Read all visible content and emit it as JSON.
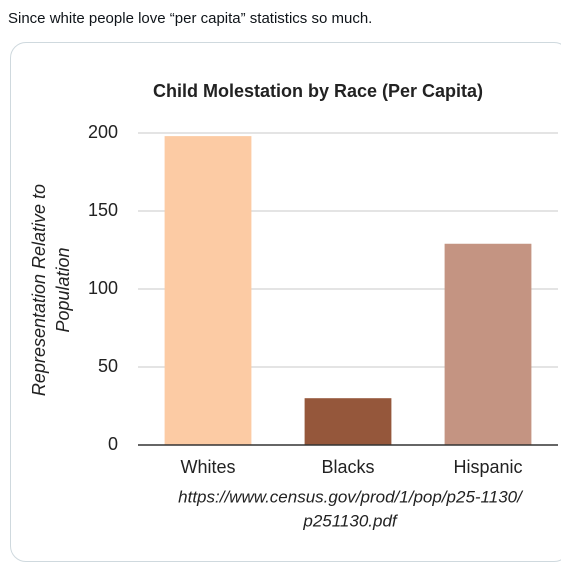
{
  "post": {
    "text": "Since white people love “per capita” statistics so much."
  },
  "chart_data": {
    "type": "bar",
    "title": "Child Molestation by Race (Per Capita)",
    "y_label": [
      "Representation Relative to",
      "Population"
    ],
    "categories": [
      "Whites",
      "Blacks",
      "Hispanic"
    ],
    "values": [
      198,
      30,
      129
    ],
    "colors": [
      "#fccba4",
      "#95573b",
      "#c49482"
    ],
    "ylim": [
      0,
      200
    ],
    "yticks": [
      0,
      50,
      100,
      150,
      200
    ],
    "grid": true,
    "source": [
      "https://www.census.gov/prod/1/pop/p25-1130/",
      "p251130.pdf"
    ]
  }
}
